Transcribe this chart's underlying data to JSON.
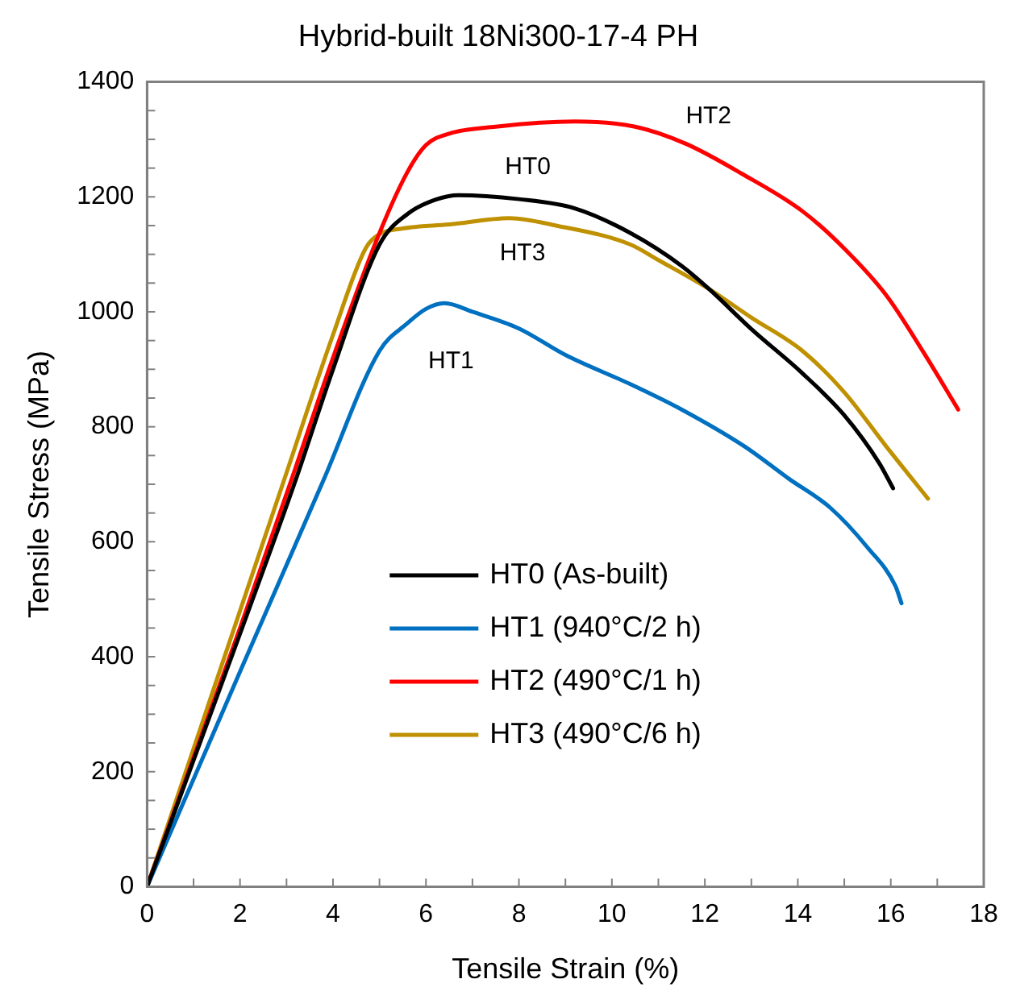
{
  "chart_data": {
    "type": "line",
    "title": "Hybrid-built 18Ni300-17-4 PH",
    "xlabel": "Tensile Strain (%)",
    "ylabel": "Tensile Stress (MPa)",
    "xlim": [
      0,
      18
    ],
    "ylim": [
      0,
      1400
    ],
    "xticks": [
      0,
      {
        "value": 1,
        "label": null
      },
      2,
      {
        "value": 3,
        "label": null
      },
      4,
      {
        "value": 5,
        "label": null
      },
      6,
      {
        "value": 7,
        "label": null
      },
      8,
      {
        "value": 9,
        "label": null
      },
      10,
      {
        "value": 11,
        "label": null
      },
      12,
      {
        "value": 13,
        "label": null
      },
      14,
      {
        "value": 15,
        "label": null
      },
      16,
      {
        "value": 17,
        "label": null
      },
      18
    ],
    "yticks": [
      0,
      {
        "value": 50,
        "label": null
      },
      {
        "value": 100,
        "label": null
      },
      {
        "value": 150,
        "label": null
      },
      200,
      {
        "value": 250,
        "label": null
      },
      {
        "value": 300,
        "label": null
      },
      {
        "value": 350,
        "label": null
      },
      400,
      {
        "value": 450,
        "label": null
      },
      {
        "value": 500,
        "label": null
      },
      {
        "value": 550,
        "label": null
      },
      600,
      {
        "value": 650,
        "label": null
      },
      {
        "value": 700,
        "label": null
      },
      {
        "value": 750,
        "label": null
      },
      800,
      {
        "value": 850,
        "label": null
      },
      {
        "value": 900,
        "label": null
      },
      {
        "value": 950,
        "label": null
      },
      1000,
      {
        "value": 1050,
        "label": null
      },
      {
        "value": 1100,
        "label": null
      },
      {
        "value": 1150,
        "label": null
      },
      1200,
      {
        "value": 1250,
        "label": null
      },
      {
        "value": 1300,
        "label": null
      },
      {
        "value": 1350,
        "label": null
      },
      1400
    ],
    "grid": false,
    "legend": "bottom left",
    "marker": "none",
    "line_style": "solid",
    "series": [
      {
        "name": "HT0 (As-built)",
        "color": "#000000",
        "x": [
          0,
          2,
          3.2,
          4,
          5,
          5.6,
          6.2,
          6.7,
          8,
          9.2,
          10.4,
          11.5,
          12.1,
          13,
          14.1,
          15,
          15.75,
          16.05
        ],
        "values": [
          0,
          440,
          708,
          900,
          1117,
          1170,
          1195,
          1203,
          1196,
          1180,
          1137,
          1080,
          1039,
          970,
          893,
          820,
          737,
          693
        ]
      },
      {
        "name": "HT1 (940°C/2 h)",
        "color": "#0070c0",
        "x": [
          0,
          2,
          3.8,
          5,
          5.6,
          6,
          6.4,
          7,
          8,
          9,
          10.4,
          11.5,
          12.85,
          13.8,
          14.7,
          15.5,
          16.1,
          16.23
        ],
        "values": [
          0,
          374,
          708,
          932,
          980,
          1005,
          1015,
          1000,
          971,
          925,
          874,
          830,
          766,
          710,
          659,
          590,
          523,
          493
        ]
      },
      {
        "name": "HT2 (490°C/1 h)",
        "color": "#ff0000",
        "x": [
          0,
          2,
          3.2,
          4,
          5,
          5.6,
          6,
          6.5,
          7.5,
          9.2,
          10.5,
          11.6,
          12.8,
          14.1,
          15,
          15.9,
          16.7,
          17.45
        ],
        "values": [
          0,
          450,
          730,
          920,
          1137,
          1243,
          1290,
          1310,
          1322,
          1331,
          1322,
          1292,
          1240,
          1175,
          1110,
          1029,
          930,
          830
        ]
      },
      {
        "name": "HT3 (490°C/6 h)",
        "color": "#bf9000",
        "x": [
          0,
          3,
          4,
          4.7,
          5,
          5.5,
          6.5,
          7.8,
          8.8,
          10.4,
          11,
          12.1,
          13,
          14.1,
          15,
          15.9,
          16.8
        ],
        "values": [
          0,
          720,
          960,
          1110,
          1135,
          1145,
          1152,
          1163,
          1150,
          1117,
          1090,
          1039,
          990,
          932,
          860,
          766,
          675
        ]
      }
    ],
    "annotations": [
      "HT0",
      "HT1",
      "HT2",
      "HT3"
    ]
  }
}
